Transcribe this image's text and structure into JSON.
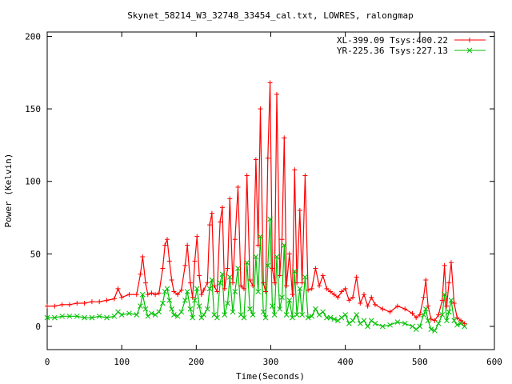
{
  "chart_data": {
    "type": "line",
    "title": "Skynet_58214_W3_32748_33454_cal.txt, LOWRES, ralongmap",
    "xlabel": "Time(Seconds)",
    "ylabel": "Power (Kelvin)",
    "xlim": [
      0,
      600
    ],
    "ylim": [
      -16,
      203
    ],
    "xticks": [
      0,
      100,
      200,
      300,
      400,
      500,
      600
    ],
    "yticks": [
      0,
      50,
      100,
      150,
      200
    ],
    "grid": false,
    "legend_position": "top-right",
    "series": [
      {
        "name": "XL-399.09 Tsys:400.22",
        "color": "#ff0000",
        "marker": "+",
        "x": [
          0,
          10,
          20,
          30,
          40,
          50,
          60,
          70,
          80,
          90,
          95,
          100,
          110,
          120,
          125,
          128,
          132,
          135,
          140,
          145,
          150,
          155,
          158,
          161,
          164,
          167,
          170,
          175,
          180,
          185,
          188,
          192,
          195,
          198,
          201,
          204,
          207,
          210,
          215,
          218,
          221,
          224,
          228,
          232,
          235,
          238,
          242,
          245,
          249,
          252,
          256,
          260,
          264,
          268,
          272,
          276,
          280,
          283,
          286,
          290,
          293,
          296,
          299,
          302,
          305,
          308,
          312,
          315,
          318,
          321,
          325,
          329,
          332,
          335,
          339,
          342,
          346,
          350,
          355,
          360,
          365,
          370,
          375,
          380,
          385,
          390,
          395,
          400,
          405,
          410,
          415,
          420,
          425,
          430,
          435,
          440,
          450,
          460,
          470,
          480,
          490,
          495,
          500,
          505,
          508,
          511,
          515,
          520,
          525,
          530,
          533,
          536,
          539,
          542,
          546,
          550,
          555,
          560
        ],
        "y": [
          14,
          14,
          15,
          15,
          16,
          16,
          17,
          17,
          18,
          19,
          26,
          20,
          22,
          22,
          36,
          48,
          30,
          22,
          23,
          22,
          23,
          40,
          56,
          60,
          45,
          32,
          24,
          22,
          25,
          42,
          56,
          30,
          20,
          45,
          62,
          35,
          22,
          25,
          30,
          70,
          78,
          28,
          24,
          72,
          82,
          26,
          40,
          88,
          30,
          60,
          96,
          28,
          26,
          104,
          32,
          28,
          115,
          56,
          150,
          30,
          24,
          116,
          168,
          40,
          30,
          160,
          35,
          60,
          130,
          28,
          50,
          22,
          108,
          30,
          80,
          30,
          104,
          25,
          26,
          40,
          28,
          35,
          26,
          24,
          22,
          20,
          24,
          26,
          18,
          20,
          34,
          16,
          22,
          14,
          20,
          15,
          12,
          10,
          14,
          12,
          9,
          6,
          8,
          20,
          32,
          14,
          5,
          4,
          8,
          18,
          42,
          14,
          30,
          44,
          16,
          6,
          4,
          2
        ]
      },
      {
        "name": "YR-225.36 Tsys:227.13",
        "color": "#00c000",
        "marker": "x",
        "x": [
          0,
          10,
          20,
          30,
          40,
          50,
          60,
          70,
          80,
          90,
          95,
          100,
          110,
          120,
          125,
          128,
          132,
          135,
          140,
          145,
          150,
          155,
          158,
          161,
          164,
          167,
          170,
          175,
          180,
          185,
          188,
          192,
          195,
          198,
          201,
          204,
          207,
          210,
          215,
          218,
          221,
          224,
          228,
          232,
          235,
          238,
          242,
          245,
          249,
          252,
          256,
          260,
          264,
          268,
          272,
          276,
          280,
          283,
          286,
          290,
          293,
          296,
          299,
          302,
          305,
          308,
          312,
          315,
          318,
          321,
          325,
          329,
          332,
          335,
          339,
          342,
          346,
          350,
          355,
          360,
          365,
          370,
          375,
          380,
          385,
          390,
          395,
          400,
          405,
          410,
          415,
          420,
          425,
          430,
          435,
          440,
          450,
          460,
          470,
          480,
          490,
          495,
          500,
          505,
          508,
          511,
          515,
          520,
          525,
          530,
          533,
          536,
          539,
          542,
          546,
          550,
          555,
          560
        ],
        "y": [
          6,
          6,
          7,
          7,
          7,
          6,
          6,
          7,
          6,
          7,
          10,
          8,
          9,
          8,
          14,
          22,
          12,
          7,
          9,
          8,
          10,
          16,
          24,
          26,
          18,
          12,
          8,
          7,
          10,
          18,
          24,
          12,
          6,
          18,
          26,
          14,
          6,
          8,
          12,
          26,
          32,
          8,
          6,
          30,
          36,
          8,
          16,
          34,
          10,
          24,
          40,
          8,
          6,
          44,
          12,
          8,
          48,
          24,
          62,
          10,
          6,
          42,
          74,
          14,
          8,
          48,
          12,
          20,
          56,
          8,
          18,
          6,
          38,
          8,
          26,
          8,
          34,
          6,
          7,
          12,
          8,
          10,
          6,
          6,
          5,
          4,
          6,
          8,
          2,
          4,
          8,
          2,
          4,
          0,
          4,
          2,
          0,
          1,
          3,
          2,
          0,
          -2,
          0,
          8,
          12,
          4,
          -2,
          -3,
          2,
          8,
          22,
          4,
          10,
          18,
          4,
          1,
          2,
          0
        ]
      }
    ]
  }
}
